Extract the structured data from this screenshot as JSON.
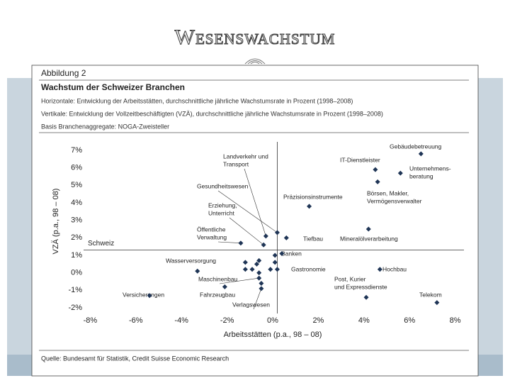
{
  "slide_title": "Wesenswachstum",
  "figure": {
    "number": "Abbildung 2",
    "title": "Wachstum der Schweizer Branchen",
    "notes": [
      "Horizontale: Entwicklung der Arbeitsstätten, durchschnittliche jährliche Wachstumsrate in Prozent (1998–2008)",
      "Vertikale: Entwicklung der Vollzeitbeschäftigten (VZÄ), durchschnittliche jährliche Wachstumsrate in Prozent (1998–2008)",
      "Basis Branchenaggregate: NOGA-Zweisteller"
    ],
    "source": "Quelle: Bundesamt für Statistik, Credit Suisse Economic Research"
  },
  "chart_data": {
    "type": "scatter",
    "x_label": "Arbeitsstätten (p.a., 98 – 08)",
    "y_label": "VZÄ (p.a., 98 – 08)",
    "xlim": [
      -8,
      8
    ],
    "ylim": [
      -2,
      7
    ],
    "xticks": [
      {
        "value": -8,
        "label": "-8%"
      },
      {
        "value": -6,
        "label": "-6%"
      },
      {
        "value": -4,
        "label": "-4%"
      },
      {
        "value": -2,
        "label": "-2%"
      },
      {
        "value": 0,
        "label": "0%"
      },
      {
        "value": 2,
        "label": "2%"
      },
      {
        "value": 4,
        "label": "4%"
      },
      {
        "value": 6,
        "label": "6%"
      },
      {
        "value": 8,
        "label": "8%"
      }
    ],
    "yticks": [
      {
        "value": 7,
        "label": "7%"
      },
      {
        "value": 6,
        "label": "6%"
      },
      {
        "value": 5,
        "label": "5%"
      },
      {
        "value": 4,
        "label": "4%"
      },
      {
        "value": 3,
        "label": "3%"
      },
      {
        "value": 2,
        "label": "2%"
      },
      {
        "value": 1,
        "label": "1%"
      },
      {
        "value": 0,
        "label": "0%"
      },
      {
        "value": -1,
        "label": "-1%"
      },
      {
        "value": -2,
        "label": "-2%"
      }
    ],
    "reference": {
      "label": "Schweiz",
      "x": 0.2,
      "y": 1.3
    },
    "series": [
      {
        "color": "#1f3556",
        "x": [
          6.5,
          4.5,
          5.6,
          4.6,
          1.6,
          4.2,
          0.2,
          -0.3,
          0.6,
          -1.4,
          -0.4,
          0.4,
          0.1,
          -0.6,
          -1.2,
          -0.7,
          0.1,
          -0.9,
          -1.2,
          -3.3,
          -0.1,
          0.2,
          -0.6,
          4.7,
          -0.6,
          -0.5,
          -2.1,
          -0.5,
          -5.4,
          4.1,
          7.2
        ],
        "values": [
          6.8,
          5.9,
          5.7,
          5.2,
          3.8,
          2.5,
          2.3,
          2.1,
          2.0,
          1.7,
          1.6,
          1.1,
          1.0,
          0.7,
          0.6,
          0.5,
          0.6,
          0.2,
          0.2,
          0.1,
          0.2,
          0.2,
          0.0,
          0.2,
          -0.3,
          -0.6,
          -0.8,
          -0.9,
          -1.3,
          -1.4,
          -1.7
        ],
        "labels": [
          [
            "Gebäudebetreuung"
          ],
          [
            "IT-Dienstleister"
          ],
          [
            "Unternehmens-",
            "beratung"
          ],
          [
            "Börsen, Makler,",
            "Vermögensverwalter"
          ],
          [
            "Präzisionsinstrumente"
          ],
          [
            "Mineralölverarbeitung"
          ],
          [
            "Gesundheitswesen"
          ],
          [
            "Landverkehr und",
            "Transport"
          ],
          [
            "Tiefbau"
          ],
          [
            "Öffentliche",
            "Verwaltung"
          ],
          [
            "Erziehung,",
            "Unterricht"
          ],
          [
            "Banken"
          ],
          null,
          null,
          null,
          null,
          null,
          null,
          null,
          [
            "Wasserversorgung"
          ],
          null,
          [
            "Gastronomie"
          ],
          null,
          [
            "Hochbau"
          ],
          [
            "Maschinenbau"
          ],
          null,
          [
            "Fahrzeugbau"
          ],
          [
            "Verlagswesen"
          ],
          [
            "Versicherungen"
          ],
          [
            "Post, Kurier",
            "und Expressdienste"
          ],
          [
            "Telekom"
          ]
        ]
      }
    ]
  }
}
